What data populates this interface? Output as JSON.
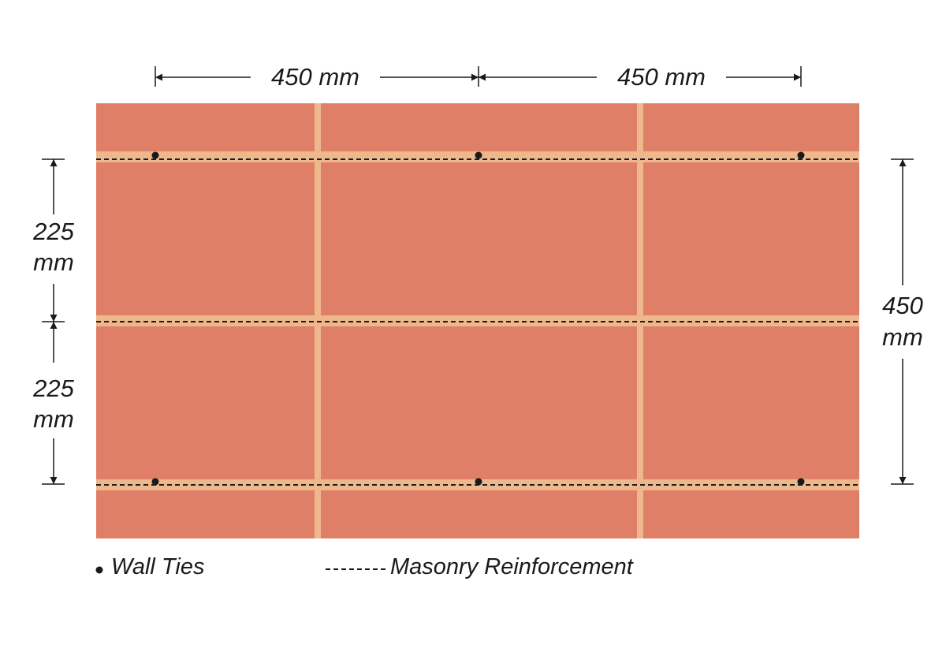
{
  "colors": {
    "brick": "#e07f67",
    "mortar": "#eeb78c",
    "ink": "#1a1a1a",
    "background": "#ffffff"
  },
  "dimensions": {
    "top_left_label": "450 mm",
    "top_right_label": "450 mm",
    "left_upper_label": [
      "225",
      "mm"
    ],
    "left_lower_label": [
      "225",
      "mm"
    ],
    "right_label": [
      "450",
      "mm"
    ]
  },
  "legend": {
    "wall_ties": "Wall Ties",
    "masonry_reinforcement": "Masonry Reinforcement"
  },
  "wall_ties": {
    "rows": 2,
    "per_row": 3
  },
  "reinforcement_lines": 3
}
